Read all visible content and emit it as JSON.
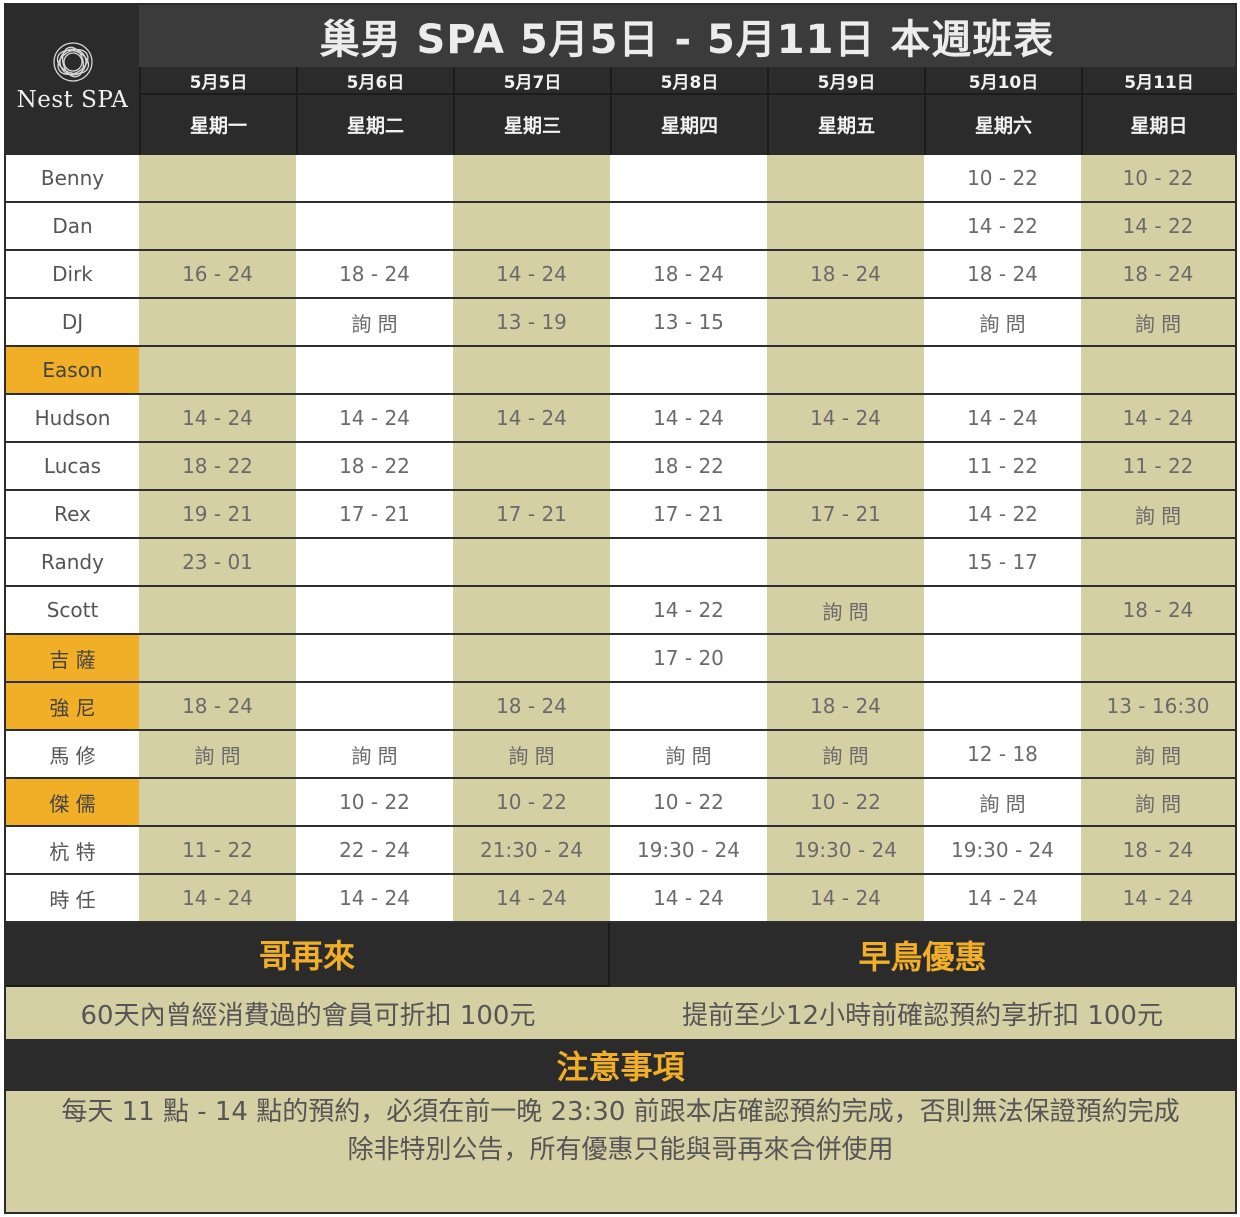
{
  "logo": {
    "text": "Nest SPA",
    "icon": "woven-nest-icon"
  },
  "title": "巢男 SPA 5月5日 - 5月11日 本週班表",
  "days": [
    {
      "date": "5月5日",
      "weekday": "星期一"
    },
    {
      "date": "5月6日",
      "weekday": "星期二"
    },
    {
      "date": "5月7日",
      "weekday": "星期三"
    },
    {
      "date": "5月8日",
      "weekday": "星期四"
    },
    {
      "date": "5月9日",
      "weekday": "星期五"
    },
    {
      "date": "5月10日",
      "weekday": "星期六"
    },
    {
      "date": "5月11日",
      "weekday": "星期日"
    }
  ],
  "staff": [
    {
      "name": "Benny",
      "highlight": false,
      "shifts": [
        "",
        "",
        "",
        "",
        "",
        "10 - 22",
        "10 - 22"
      ]
    },
    {
      "name": "Dan",
      "highlight": false,
      "shifts": [
        "",
        "",
        "",
        "",
        "",
        "14 - 22",
        "14 - 22"
      ]
    },
    {
      "name": "Dirk",
      "highlight": false,
      "shifts": [
        "16 - 24",
        "18 - 24",
        "14 - 24",
        "18 - 24",
        "18 - 24",
        "18 - 24",
        "18 - 24"
      ]
    },
    {
      "name": "DJ",
      "highlight": false,
      "shifts": [
        "",
        "詢 問",
        "13 - 19",
        "13 - 15",
        "",
        "詢 問",
        "詢 問"
      ]
    },
    {
      "name": "Eason",
      "highlight": true,
      "shifts": [
        "",
        "",
        "",
        "",
        "",
        "",
        ""
      ]
    },
    {
      "name": "Hudson",
      "highlight": false,
      "shifts": [
        "14 - 24",
        "14 - 24",
        "14 - 24",
        "14 - 24",
        "14 - 24",
        "14 - 24",
        "14 - 24"
      ]
    },
    {
      "name": "Lucas",
      "highlight": false,
      "shifts": [
        "18 - 22",
        "18 - 22",
        "",
        "18 - 22",
        "",
        "11 - 22",
        "11 - 22"
      ]
    },
    {
      "name": "Rex",
      "highlight": false,
      "shifts": [
        "19 - 21",
        "17 - 21",
        "17 - 21",
        "17 - 21",
        "17 - 21",
        "14 - 22",
        "詢 問"
      ]
    },
    {
      "name": "Randy",
      "highlight": false,
      "shifts": [
        "23 - 01",
        "",
        "",
        "",
        "",
        "15 - 17",
        ""
      ]
    },
    {
      "name": "Scott",
      "highlight": false,
      "shifts": [
        "",
        "",
        "",
        "14 - 22",
        "詢 問",
        "",
        "18 - 24"
      ]
    },
    {
      "name": "吉 薩",
      "highlight": true,
      "shifts": [
        "",
        "",
        "",
        "17 - 20",
        "",
        "",
        ""
      ]
    },
    {
      "name": "強 尼",
      "highlight": true,
      "shifts": [
        "18 - 24",
        "",
        "18 - 24",
        "",
        "18 - 24",
        "",
        "13 - 16:30"
      ]
    },
    {
      "name": "馬 修",
      "highlight": false,
      "shifts": [
        "詢 問",
        "詢 問",
        "詢 問",
        "詢 問",
        "詢 問",
        "12 - 18",
        "詢 問"
      ]
    },
    {
      "name": "傑 儒",
      "highlight": true,
      "shifts": [
        "",
        "10 - 22",
        "10 - 22",
        "10 - 22",
        "10 - 22",
        "詢 問",
        "詢 問"
      ]
    },
    {
      "name": "杭 特",
      "highlight": false,
      "shifts": [
        "11 - 22",
        "22 - 24",
        "21:30 - 24",
        "19:30 - 24",
        "19:30 - 24",
        "19:30 - 24",
        "18 - 24"
      ]
    },
    {
      "name": "時 任",
      "highlight": false,
      "shifts": [
        "14 - 24",
        "14 - 24",
        "14 - 24",
        "14 - 24",
        "14 - 24",
        "14 - 24",
        "14 - 24"
      ]
    }
  ],
  "promos": {
    "left": {
      "title": "哥再來",
      "text": "60天內曾經消費過的會員可折扣 100元"
    },
    "right": {
      "title": "早鳥優惠",
      "text": "提前至少12小時前確認預約享折扣 100元"
    }
  },
  "notice": {
    "title": "注意事項",
    "line1": "每天 11 點 - 14 點的預約，必須在前一晚 23:30 前跟本店確認預約完成，否則無法保證預約完成",
    "line2": "除非特別公告，所有優惠只能與哥再來合併使用"
  },
  "colors": {
    "dark": "#2b2b2b",
    "tan": "#d5cfa4",
    "accent": "#f1ae27",
    "white": "#ffffff"
  }
}
